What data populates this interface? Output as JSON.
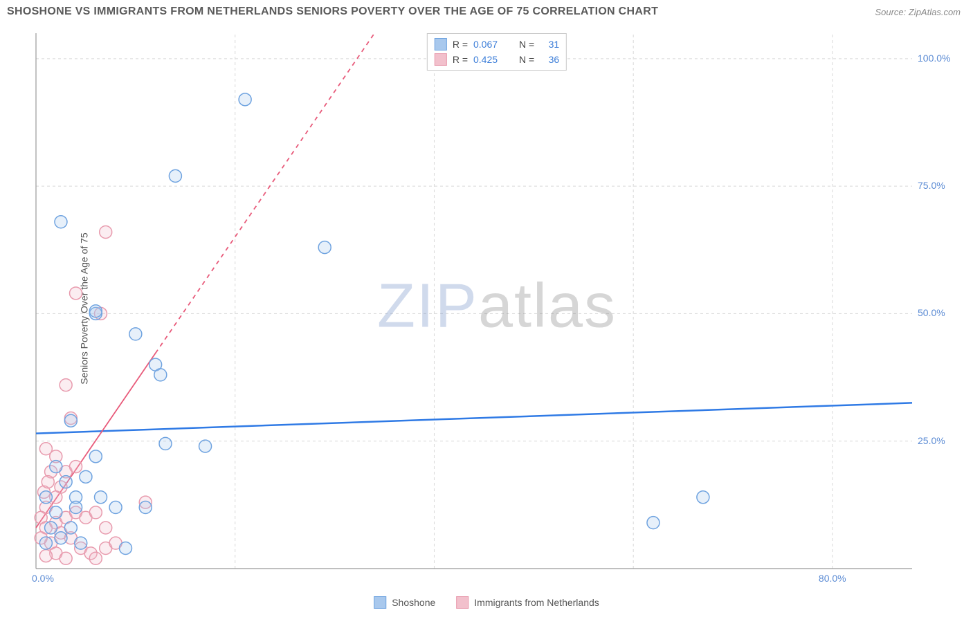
{
  "header": {
    "title": "SHOSHONE VS IMMIGRANTS FROM NETHERLANDS SENIORS POVERTY OVER THE AGE OF 75 CORRELATION CHART",
    "source": "Source: ZipAtlas.com"
  },
  "watermark": {
    "part1": "ZIP",
    "part2": "atlas"
  },
  "chart": {
    "type": "scatter",
    "y_axis_label": "Seniors Poverty Over the Age of 75",
    "xlim": [
      0,
      88
    ],
    "ylim": [
      0,
      105
    ],
    "x_ticks": [
      {
        "pos": 0,
        "label": "0.0%"
      },
      {
        "pos": 80,
        "label": "80.0%"
      }
    ],
    "y_ticks": [
      {
        "pos": 25,
        "label": "25.0%"
      },
      {
        "pos": 50,
        "label": "50.0%"
      },
      {
        "pos": 75,
        "label": "75.0%"
      },
      {
        "pos": 100,
        "label": "100.0%"
      }
    ],
    "x_gridlines": [
      20,
      40,
      60,
      80
    ],
    "y_gridlines": [
      25,
      50,
      75,
      100
    ],
    "background_color": "#ffffff",
    "grid_color": "#d8d8d8",
    "axis_color": "#999999",
    "tick_label_color": "#5b8bd4",
    "marker_radius": 9,
    "marker_stroke_width": 1.5,
    "marker_fill_opacity": 0.28,
    "series": [
      {
        "name": "Shoshone",
        "color_stroke": "#6fa3e0",
        "color_fill": "#a8c8ed",
        "r_value": "0.067",
        "n_value": "31",
        "trend": {
          "type": "solid",
          "x1": 0,
          "y1": 26.5,
          "x2": 88,
          "y2": 32.5,
          "color": "#2f7ae5",
          "width": 2.5
        },
        "points": [
          [
            2.5,
            68
          ],
          [
            14,
            77
          ],
          [
            21,
            92
          ],
          [
            29,
            63
          ],
          [
            10,
            46
          ],
          [
            12,
            40
          ],
          [
            12.5,
            38
          ],
          [
            6,
            50
          ],
          [
            6,
            50.5
          ],
          [
            3.5,
            29
          ],
          [
            6,
            22
          ],
          [
            13,
            24.5
          ],
          [
            8,
            12
          ],
          [
            4,
            14
          ],
          [
            6.5,
            14
          ],
          [
            5,
            18
          ],
          [
            2,
            20
          ],
          [
            3,
            17
          ],
          [
            2,
            11
          ],
          [
            1,
            14
          ],
          [
            1.5,
            8
          ],
          [
            3.5,
            8
          ],
          [
            9,
            4
          ],
          [
            4.5,
            5
          ],
          [
            2.5,
            6
          ],
          [
            1,
            5
          ],
          [
            11,
            12
          ],
          [
            17,
            24
          ],
          [
            62,
            9
          ],
          [
            67,
            14
          ],
          [
            4,
            12
          ]
        ]
      },
      {
        "name": "Immigrants from Netherlands",
        "color_stroke": "#e89aad",
        "color_fill": "#f2c0cc",
        "r_value": "0.425",
        "n_value": "36",
        "trend": {
          "type": "dashed",
          "x1": 0,
          "y1": 8,
          "x2": 34,
          "y2": 105,
          "color": "#e85a7a",
          "width": 1.8,
          "solid_until_x": 12
        },
        "points": [
          [
            7,
            66
          ],
          [
            4,
            54
          ],
          [
            6.5,
            50
          ],
          [
            3,
            36
          ],
          [
            3.5,
            29.5
          ],
          [
            2,
            22
          ],
          [
            1,
            23.5
          ],
          [
            1.5,
            19
          ],
          [
            3,
            19
          ],
          [
            4,
            20
          ],
          [
            2.5,
            16
          ],
          [
            2,
            14
          ],
          [
            1,
            12
          ],
          [
            0.5,
            10
          ],
          [
            1,
            8
          ],
          [
            2,
            9
          ],
          [
            3,
            10
          ],
          [
            4,
            11
          ],
          [
            5,
            10
          ],
          [
            6,
            11
          ],
          [
            2.5,
            7
          ],
          [
            3.5,
            6
          ],
          [
            1.5,
            5
          ],
          [
            0.5,
            6
          ],
          [
            4.5,
            4
          ],
          [
            5.5,
            3
          ],
          [
            2,
            3
          ],
          [
            3,
            2
          ],
          [
            6,
            2
          ],
          [
            1,
            2.5
          ],
          [
            7,
            4
          ],
          [
            8,
            5
          ],
          [
            11,
            13
          ],
          [
            7,
            8
          ],
          [
            0.8,
            15
          ],
          [
            1.2,
            17
          ]
        ]
      }
    ]
  },
  "legend_bottom": {
    "item1": "Shoshone",
    "item2": "Immigrants from Netherlands"
  }
}
